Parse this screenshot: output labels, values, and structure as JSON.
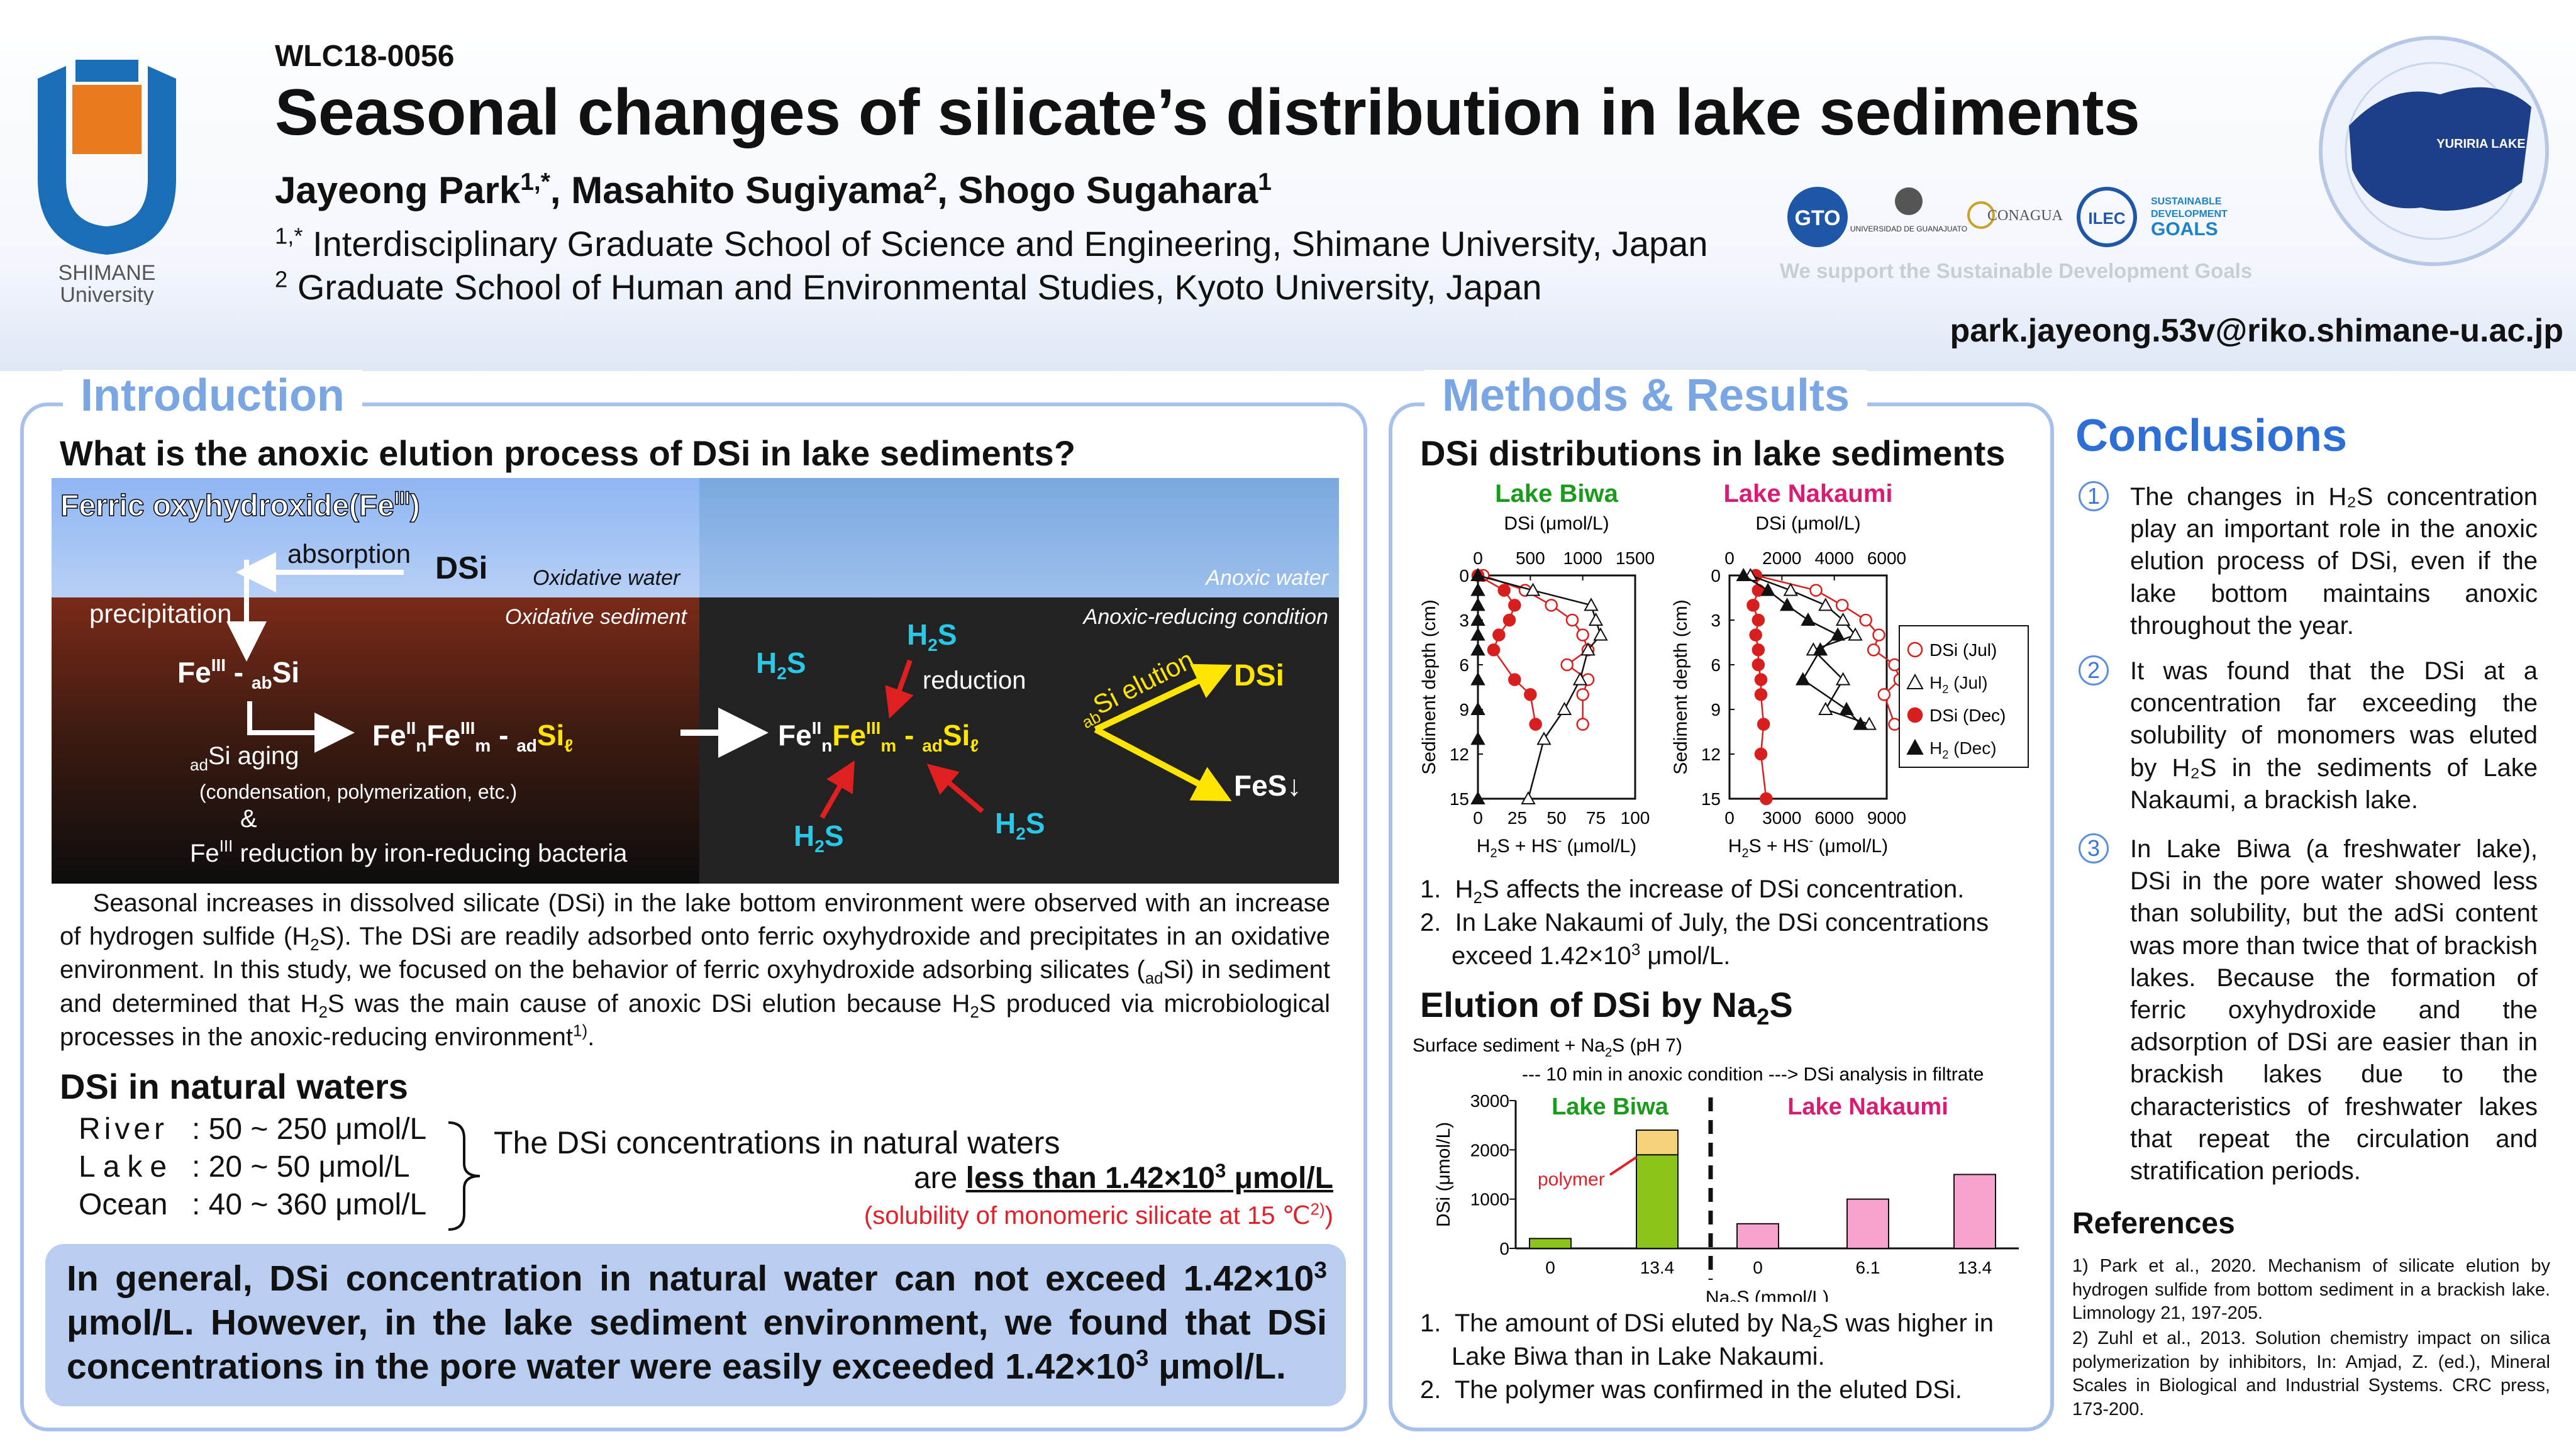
{
  "header": {
    "code": "WLC18-0056",
    "title": "Seasonal changes of silicate’s distribution in lake sediments",
    "authors": [
      "Jayeong Park",
      "Masahito Sugiyama",
      "Shogo Sugahara"
    ],
    "author_marks": [
      "1,*",
      "2",
      "1"
    ],
    "affiliations": [
      {
        "mark": "1,*",
        "text": "Interdisciplinary Graduate School of Science and Engineering, Shimane University, Japan"
      },
      {
        "mark": "2",
        "text": "Graduate School of Human and Environmental Studies, Kyoto University, Japan"
      }
    ],
    "university_logo": {
      "line1": "SHIMANE",
      "line2": "University",
      "icon": "shimane-university-logo"
    },
    "sponsors": {
      "gto": "GTO",
      "guanajuato": "UNIVERSIDAD DE GUANAJUATO",
      "conagua": "CONAGUA",
      "ilec": "ILEC",
      "sdg_lines": [
        "SUSTAINABLE",
        "DEVELOPMENT",
        "GOALS"
      ],
      "tagline": "We support the Sustainable Development Goals"
    },
    "conference_logo": {
      "lake": "YURIRIA LAKE",
      "icon": "world-lake-conference-logo"
    },
    "email": "park.jayeong.53v@riko.shimane-u.ac.jp"
  },
  "intro": {
    "section_title": "Introduction",
    "question": "What is the anoxic elution process of DSi in lake sediments?",
    "diagram": {
      "ferric": "Ferric oxyhydroxide(Fe",
      "ferric_sup": "III",
      "absorption": "absorption",
      "dsi": "DSi",
      "oxidative_water": "Oxidative water",
      "anoxic_water": "Anoxic water",
      "precipitation": "precipitation",
      "oxidative_sediment": "Oxidative sediment",
      "anoxic_condition": "Anoxic-reducing condition",
      "reduction": "reduction",
      "ab_elution": "Si elution",
      "fes": "FeS↓",
      "aging": "Si aging",
      "aging_note": "(condensation, polymerization, etc.)",
      "amp": "&",
      "bacteria": "reduction by iron-reducing bacteria"
    },
    "paragraph": {
      "p1": "Seasonal increases in dissolved silicate (DSi) in the lake bottom environment were observed with an increase of hydrogen sulfide (H",
      "p2": "S). The DSi are readily adsorbed onto ferric oxyhydroxide and precipitates in an oxidative environment. In this study, we focused on the behavior of ferric oxyhydroxide adsorbing silicates (",
      "p3": "Si) in sediment and determined that H",
      "p4": "S was the main cause of anoxic DSi elution because H",
      "p5": "S produced via microbiological processes in the anoxic-reducing environment",
      "ref": "1)"
    },
    "natural": {
      "heading": "DSi in natural waters",
      "rows": [
        {
          "label": "River",
          "value": ": 50 ~ 250 μmol/L"
        },
        {
          "label": "Lake",
          "value": ": 20 ~ 50 μmol/L"
        },
        {
          "label": "Ocean",
          "value": ": 40 ~ 360 μmol/L"
        }
      ],
      "line1": "The DSi concentrations in natural waters",
      "line2_pre": "are ",
      "line2_bold": "less than 1.42×10",
      "line2_unit": " μmol/L",
      "solubility": "(solubility of monomeric silicate at 15 ℃",
      "solubility_ref": "2)"
    },
    "highlight": {
      "a": "In general, DSi concentration in natural water can not exceed 1.42×10",
      "b": " μmol/L. However, in the lake sediment environment, we found that DSi concentrations in the pore water were easily exceeded 1.42×10",
      "c": " μmol/L."
    }
  },
  "methods": {
    "section_title": "Methods & Results",
    "dsi_heading": "DSi distributions in lake sediments",
    "findings1": [
      "S affects the increase of DSi concentration.",
      "In Lake Nakaumi of July, the DSi concentrations exceed 1.42×10"
    ],
    "elution_heading": "Elution of DSi by Na",
    "findings2": [
      "The amount of DSi eluted by Na",
      "S was higher in Lake Biwa than in Lake Nakaumi.",
      "The polymer was confirmed in the eluted DSi."
    ]
  },
  "conclusions": {
    "title": "Conclusions",
    "items": [
      "The changes in H₂S concentration play an important role in the anoxic elution process of DSi, even if the lake bottom maintains anoxic throughout the year.",
      "It was found that the DSi at a concentration far exceeding the solubility of monomers was eluted by H₂S in the sediments of Lake Nakaumi, a brackish lake.",
      "In Lake Biwa (a freshwater lake), DSi in the pore water showed less than solubility, but the adSi content was more than twice that of brackish lakes. Because the formation of ferric oxyhydroxide and the adsorption of DSi are easier than in brackish lakes due to the characteristics of freshwater lakes that repeat the circulation and stratification periods."
    ],
    "refs_title": "References",
    "refs": [
      "1) Park et al., 2020. Mechanism of silicate elution by hydrogen sulfide from bottom sediment in a brackish lake. Limnology 21, 197-205.",
      "2) Zuhl et al., 2013. Solution chemistry impact on silica polymerization by inhibitors, In: Amjad, Z. (ed.), Mineral Scales in Biological and Industrial Systems. CRC press, 173-200."
    ]
  },
  "chart_data": [
    {
      "type": "scatter",
      "title": "Lake Biwa",
      "ylabel": "Sediment depth (cm)",
      "x_top_label": "DSi (μmol/L)",
      "x_top_ticks": [
        0,
        500,
        1000,
        1500
      ],
      "x_bottom_label": "H2S + HS- (μmol/L)",
      "x_bottom_ticks": [
        0,
        25,
        50,
        75,
        100
      ],
      "ylim": [
        0,
        15
      ],
      "yticks": [
        0,
        3,
        6,
        9,
        12,
        15
      ],
      "series": [
        {
          "name": "DSi (Jul)",
          "x": [
            50,
            450,
            700,
            900,
            1000,
            1050,
            850,
            1050,
            1000,
            1000
          ],
          "y": [
            0,
            1,
            2,
            3,
            4,
            5,
            6,
            7,
            8,
            10
          ]
        },
        {
          "name": "DSi (Dec)",
          "x": [
            0,
            250,
            350,
            300,
            200,
            150,
            350,
            500,
            550
          ],
          "y": [
            0,
            1,
            2,
            3,
            4,
            5,
            7,
            8,
            10
          ]
        },
        {
          "name": "H2S (Jul)",
          "x": [
            0,
            35,
            72,
            75,
            78,
            70,
            65,
            55,
            42,
            32
          ],
          "y": [
            0,
            1,
            2,
            3,
            4,
            5,
            7,
            9,
            11,
            15
          ]
        },
        {
          "name": "H2S (Dec)",
          "x": [
            0,
            0,
            0,
            0,
            0,
            0,
            0,
            0,
            0,
            0
          ],
          "y": [
            0,
            1,
            2,
            3,
            4,
            5,
            7,
            9,
            11,
            15
          ]
        }
      ]
    },
    {
      "type": "scatter",
      "title": "Lake Nakaumi",
      "ylabel": "Sediment depth (cm)",
      "x_top_label": "DSi (μmol/L)",
      "x_top_ticks": [
        0,
        2000,
        4000,
        6000
      ],
      "x_bottom_label": "H2S + HS- (μmol/L)",
      "x_bottom_ticks": [
        0,
        3000,
        6000,
        9000
      ],
      "ylim": [
        0,
        15
      ],
      "yticks": [
        0,
        3,
        6,
        9,
        12,
        15
      ],
      "series": [
        {
          "name": "DSi (Jul)",
          "x": [
            1000,
            3300,
            4300,
            5200,
            5700,
            5500,
            6300,
            6500,
            5900,
            6300
          ],
          "y": [
            0,
            1,
            2,
            3,
            4,
            5,
            6,
            7,
            8,
            10
          ]
        },
        {
          "name": "DSi (Dec)",
          "x": [
            1000,
            1100,
            900,
            1100,
            1000,
            1100,
            1100,
            1200,
            1200,
            1300,
            1200,
            1400
          ],
          "y": [
            0,
            1,
            2,
            3,
            4,
            5,
            6,
            7,
            8,
            10,
            12,
            15
          ]
        },
        {
          "name": "H2S (Jul)",
          "x": [
            1200,
            3500,
            5500,
            6500,
            7200,
            4800,
            6500,
            5500,
            8000
          ],
          "y": [
            0,
            1,
            2,
            3,
            4,
            5,
            7,
            9,
            10
          ]
        },
        {
          "name": "H2S (Dec)",
          "x": [
            800,
            2200,
            3300,
            4500,
            6200,
            5200,
            4200,
            6700,
            7500
          ],
          "y": [
            0,
            1,
            2,
            3,
            4,
            5,
            7,
            9,
            10
          ]
        }
      ]
    },
    {
      "type": "bar",
      "title": "Surface sediment + Na2S (pH 7)",
      "subtitle": "--- 10 min in anoxic condition ---> DSi analysis in filtrate",
      "groups": [
        "Lake Biwa",
        "Lake Nakaumi"
      ],
      "categories": [
        "0",
        "13.4",
        "0",
        "6.1",
        "13.4"
      ],
      "xlabel": "Na2S (mmol/L)",
      "ylabel": "DSi (μmol/L)",
      "ylim": [
        0,
        3000
      ],
      "yticks": [
        0,
        1000,
        2000,
        3000
      ],
      "series": [
        {
          "name": "DSi",
          "values": [
            200,
            1900,
            500,
            1000,
            1500
          ]
        },
        {
          "name": "polymer",
          "values": [
            0,
            500,
            0,
            0,
            0
          ]
        }
      ],
      "annotation": "polymer",
      "colors": {
        "biwa": "#8cc41b",
        "nakaumi": "#f7a3cd",
        "polymer": "#f5d27a"
      }
    }
  ]
}
